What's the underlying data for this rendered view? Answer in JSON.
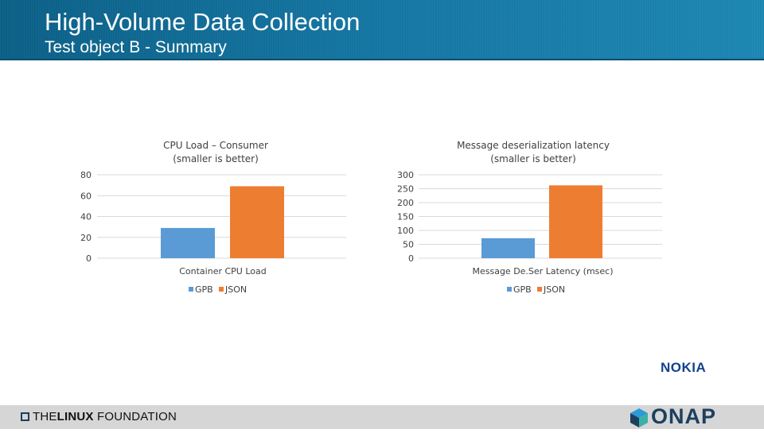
{
  "slide": {
    "title": "High-Volume Data Collection",
    "subtitle": "Test object B - Summary"
  },
  "logos": {
    "linux_foundation_light": "THE",
    "linux_foundation_bold": "LINUX",
    "linux_foundation_rest": " FOUNDATION",
    "nokia": "NOKIA",
    "onap": "ONAP"
  },
  "colors": {
    "gpb": "#5b9bd5",
    "json": "#ed7d31",
    "header": "#1474a0"
  },
  "chart_data": [
    {
      "type": "bar",
      "title": "CPU Load – Consumer\n(smaller is better)",
      "categories": [
        "Container CPU Load"
      ],
      "series": [
        {
          "name": "GPB",
          "values": [
            29
          ]
        },
        {
          "name": "JSON",
          "values": [
            69
          ]
        }
      ],
      "ylim": [
        0,
        80
      ],
      "yticks": [
        0,
        20,
        40,
        60,
        80
      ],
      "grid": true,
      "legend": "bottom"
    },
    {
      "type": "bar",
      "title": "Message deserialization latency\n(smaller is better)",
      "categories": [
        "Message De.Ser Latency (msec)"
      ],
      "series": [
        {
          "name": "GPB",
          "values": [
            72
          ]
        },
        {
          "name": "JSON",
          "values": [
            262
          ]
        }
      ],
      "ylim": [
        0,
        300
      ],
      "yticks": [
        0,
        50,
        100,
        150,
        200,
        250,
        300
      ],
      "grid": true,
      "legend": "bottom"
    }
  ]
}
